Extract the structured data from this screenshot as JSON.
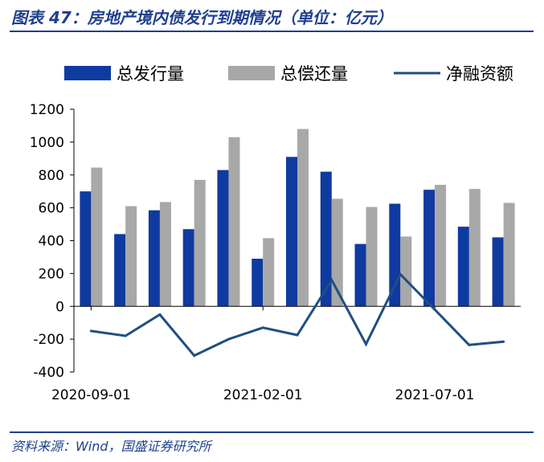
{
  "header": {
    "title": "图表 47：房地产境内债发行到期情况（单位：亿元）"
  },
  "footer": {
    "source": "资料来源：Wind，国盛证券研究所"
  },
  "colors": {
    "issue": "#0f3aa0",
    "repay": "#a8a8a8",
    "net": "#1f4e82",
    "accent": "#1f3f8f"
  },
  "chart_data": {
    "type": "bar",
    "x": [
      "2020-09-01",
      "2020-10-01",
      "2020-11-01",
      "2020-12-01",
      "2021-01-01",
      "2021-02-01",
      "2021-03-01",
      "2021-04-01",
      "2021-05-01",
      "2021-06-01",
      "2021-07-01",
      "2021-08-01",
      "2021-09-01"
    ],
    "x_tick_labels": [
      "2020-09-01",
      "2021-02-01",
      "2021-07-01"
    ],
    "series": [
      {
        "name": "总发行量",
        "type": "bar",
        "values": [
          700,
          440,
          585,
          470,
          830,
          290,
          910,
          820,
          380,
          625,
          710,
          485,
          420
        ]
      },
      {
        "name": "总偿还量",
        "type": "bar",
        "values": [
          845,
          610,
          635,
          770,
          1030,
          415,
          1080,
          655,
          605,
          425,
          740,
          715,
          630
        ]
      },
      {
        "name": "净融资额",
        "type": "line",
        "values": [
          -150,
          -180,
          -50,
          -300,
          -200,
          -130,
          -175,
          160,
          -230,
          195,
          -20,
          -235,
          -215
        ]
      }
    ],
    "ylim": [
      -400,
      1200
    ],
    "y_ticks": [
      "-400",
      "-200",
      "0",
      "200",
      "400",
      "600",
      "800",
      "1000",
      "1200"
    ],
    "legend_position": "top",
    "grid": false
  }
}
